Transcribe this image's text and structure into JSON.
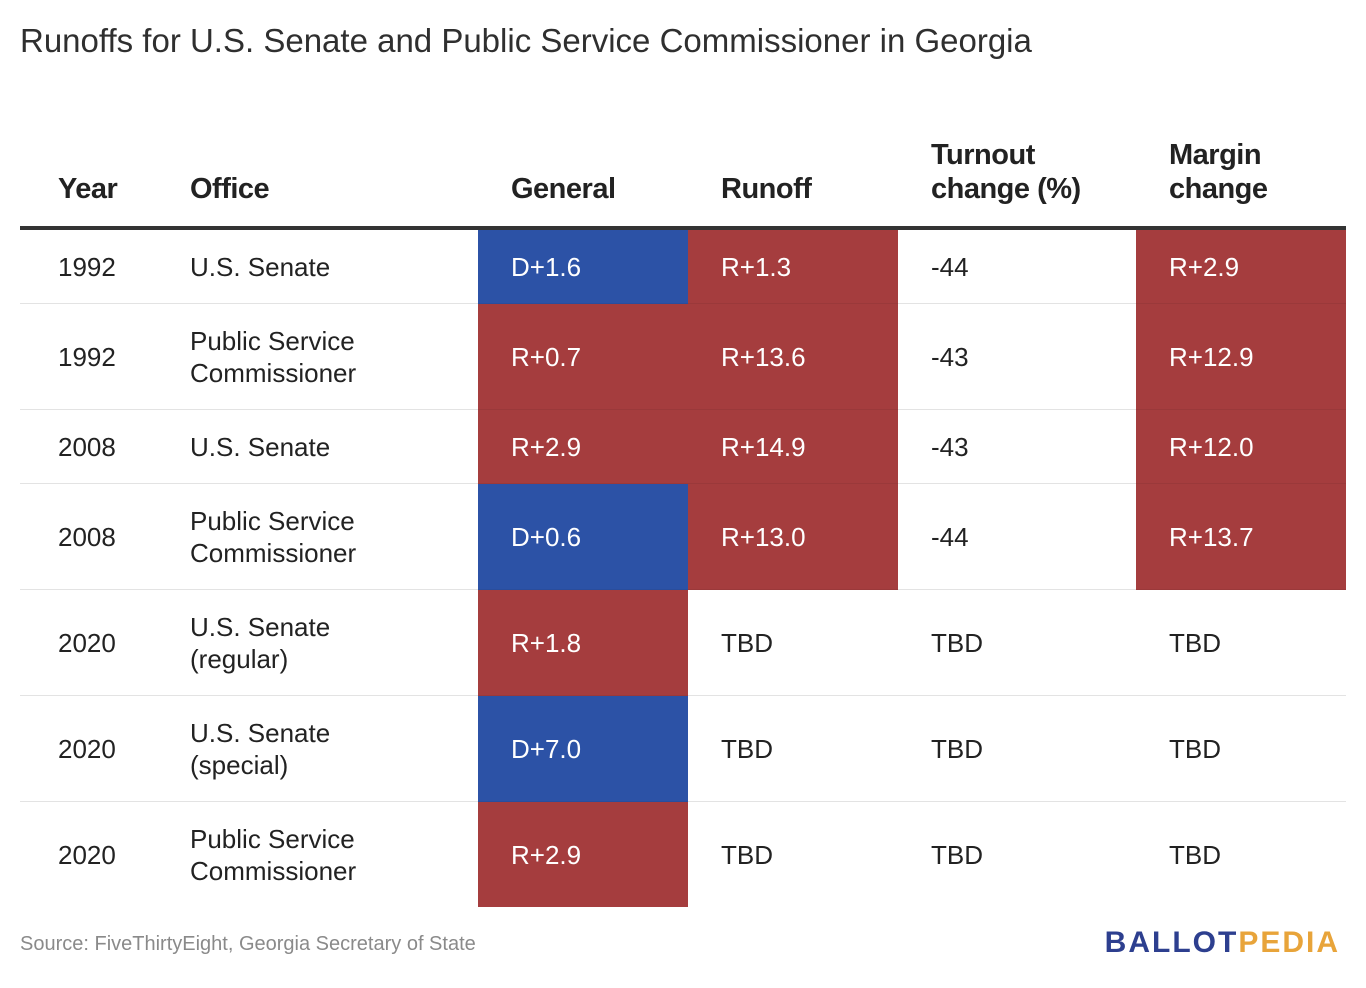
{
  "title": "Runoffs for U.S. Senate and Public Service Commissioner in Georgia",
  "source": "Source: FiveThirtyEight, Georgia Secretary of State",
  "logo": {
    "part1": "BALLOT",
    "part2": "PEDIA"
  },
  "colors": {
    "republican": "#a53d3e",
    "democrat": "#2c52a6",
    "logo_primary": "#2d3f8f",
    "logo_accent": "#e8a43a"
  },
  "chart_data": {
    "type": "table",
    "title": "Runoffs for U.S. Senate and Public Service Commissioner in Georgia",
    "columns": {
      "year": "Year",
      "office": "Office",
      "general": "General",
      "runoff": "Runoff",
      "turnout_line1": "Turnout",
      "turnout_line2": "change (%)",
      "margin_line1": "Margin",
      "margin_line2": "change"
    },
    "rows": [
      {
        "year": "1992",
        "office1": "U.S. Senate",
        "office2": "",
        "general": "D+1.6",
        "runoff": "R+1.3",
        "turnout": "-44",
        "margin": "R+2.9"
      },
      {
        "year": "1992",
        "office1": "Public Service",
        "office2": "Commissioner",
        "general": "R+0.7",
        "runoff": "R+13.6",
        "turnout": "-43",
        "margin": "R+12.9"
      },
      {
        "year": "2008",
        "office1": "U.S. Senate",
        "office2": "",
        "general": "R+2.9",
        "runoff": "R+14.9",
        "turnout": "-43",
        "margin": "R+12.0"
      },
      {
        "year": "2008",
        "office1": "Public Service",
        "office2": "Commissioner",
        "general": "D+0.6",
        "runoff": "R+13.0",
        "turnout": "-44",
        "margin": "R+13.7"
      },
      {
        "year": "2020",
        "office1": "U.S. Senate",
        "office2": "(regular)",
        "general": "R+1.8",
        "runoff": "TBD",
        "turnout": "TBD",
        "margin": "TBD"
      },
      {
        "year": "2020",
        "office1": "U.S. Senate",
        "office2": "(special)",
        "general": "D+7.0",
        "runoff": "TBD",
        "turnout": "TBD",
        "margin": "TBD"
      },
      {
        "year": "2020",
        "office1": "Public Service",
        "office2": "Commissioner",
        "general": "R+2.9",
        "runoff": "TBD",
        "turnout": "TBD",
        "margin": "TBD"
      }
    ]
  }
}
